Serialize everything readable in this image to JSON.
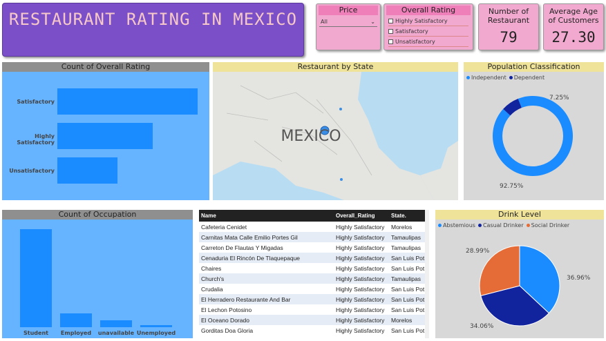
{
  "title": "RESTAURANT RATING IN MEXICO",
  "price_slicer": {
    "header": "Price",
    "selected": "All"
  },
  "rating_slicer": {
    "header": "Overall Rating",
    "options": [
      "Highly Satisfactory",
      "Satisfactory",
      "Unsatisfactory"
    ]
  },
  "kpi_restaurants": {
    "label": "Number of Restaurant",
    "value": "79"
  },
  "kpi_age": {
    "label": "Average Age of Customers",
    "value": "27.30"
  },
  "overall_rating": {
    "header": "Count of Overall Rating",
    "categories": [
      "Satisfactory",
      "Highly Satisfactory",
      "Unsatisfactory"
    ],
    "values": [
      28,
      19,
      12
    ]
  },
  "map": {
    "header": "Restaurant by State",
    "label": "MEXICO"
  },
  "population": {
    "header": "Population Classification",
    "legend": [
      "Independent",
      "Dependent"
    ],
    "values": [
      92.75,
      7.25
    ],
    "labels": [
      "92.75%",
      "7.25%"
    ],
    "colors": [
      "#1a8cff",
      "#12239e"
    ]
  },
  "occupation": {
    "header": "Count of Occupation",
    "categories": [
      "Student",
      "Employed",
      "unavailable",
      "Unemployed"
    ],
    "values": [
      100,
      14,
      7,
      2
    ]
  },
  "table": {
    "columns": [
      "Name",
      "Overall_Rating",
      "State."
    ],
    "rows": [
      [
        "Cafeteria Cenidet",
        "Highly Satisfactory",
        "Morelos"
      ],
      [
        "Carnitas Mata Calle Emilio Portes Gil",
        "Highly Satisfactory",
        "Tamaulipas"
      ],
      [
        "Carreton De Flautas Y Migadas",
        "Highly Satisfactory",
        "Tamaulipas"
      ],
      [
        "Cenaduria El Rincón De Tlaquepaque",
        "Highly Satisfactory",
        "San Luis Pot"
      ],
      [
        "Chaires",
        "Highly Satisfactory",
        "San Luis Pot"
      ],
      [
        "Church's",
        "Highly Satisfactory",
        "Tamaulipas"
      ],
      [
        "Crudalia",
        "Highly Satisfactory",
        "San Luis Pot"
      ],
      [
        "El Herradero Restaurante And Bar",
        "Highly Satisfactory",
        "San Luis Pot"
      ],
      [
        "El Lechon Potosino",
        "Highly Satisfactory",
        "San Luis Pot"
      ],
      [
        "El Oceano Dorado",
        "Highly Satisfactory",
        "Morelos"
      ],
      [
        "Gorditas Doa Gloria",
        "Highly Satisfactory",
        "San Luis Pot"
      ]
    ]
  },
  "drink": {
    "header": "Drink Level",
    "legend": [
      "Abstemious",
      "Casual Drinker",
      "Social Drinker"
    ],
    "values": [
      36.96,
      34.06,
      28.99
    ],
    "labels": [
      "36.96%",
      "34.06%",
      "28.99%"
    ],
    "colors": [
      "#1a8cff",
      "#12239e",
      "#e66c37"
    ]
  }
}
